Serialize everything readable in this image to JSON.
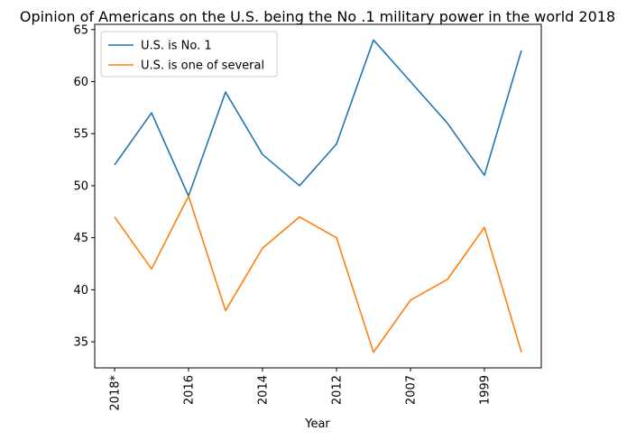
{
  "chart_data": {
    "type": "line",
    "title": "Opinion of Americans on the U.S. being the No .1 military power in the world 2018",
    "xlabel": "Year",
    "ylabel": "",
    "x": [
      "2018*",
      "",
      "2016",
      "",
      "2014",
      "",
      "2012",
      "",
      "2007",
      "",
      "1999",
      ""
    ],
    "xticks_shown": [
      "2018*",
      "2016",
      "2014",
      "2012",
      "2007",
      "1999"
    ],
    "ylim": [
      32.5,
      65.5
    ],
    "yticks": [
      35,
      40,
      45,
      50,
      55,
      60,
      65
    ],
    "grid": false,
    "legend_position": "top-left",
    "series": [
      {
        "name": "U.S. is No. 1",
        "color": "#1f77b4",
        "values": [
          52,
          57,
          49,
          59,
          53,
          50,
          54,
          64,
          60,
          56,
          51,
          63
        ]
      },
      {
        "name": "U.S. is one of several",
        "color": "#ff7f0e",
        "values": [
          47,
          42,
          49,
          38,
          44,
          47,
          45,
          34,
          39,
          41,
          46,
          34
        ]
      }
    ]
  }
}
